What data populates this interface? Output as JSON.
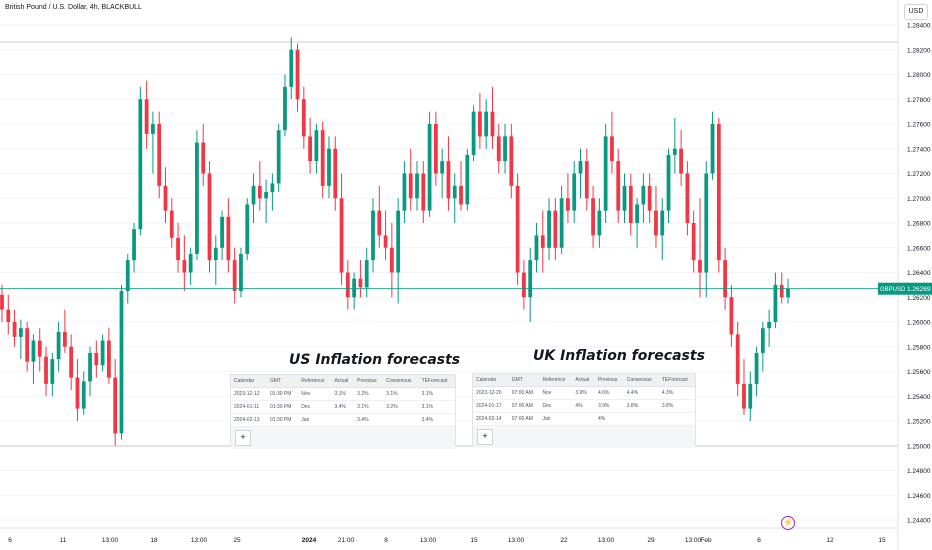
{
  "header": {
    "title": "British Pound / U.S. Dollar, 4h, BLACKBULL",
    "currency": "USD"
  },
  "price_tag": {
    "symbol": "GBPUSD",
    "value": "1.26269"
  },
  "us_panel": {
    "title": "US Inflation forecasts",
    "columns": [
      "Calendar",
      "GMT",
      "Reference",
      "Actual",
      "Previous",
      "Consensus",
      "TEForecast"
    ],
    "rows": [
      [
        "2023-12-12",
        "01:30 PM",
        "Nov",
        "3.1%",
        "3.2%",
        "3.1%",
        "3.1%"
      ],
      [
        "2024-01-11",
        "01:30 PM",
        "Dec",
        "3.4%",
        "3.1%",
        "3.2%",
        "3.1%"
      ],
      [
        "2024-02-13",
        "01:30 PM",
        "Jan",
        "",
        "3.4%",
        "",
        "3.4%"
      ]
    ],
    "add_label": "+"
  },
  "uk_panel": {
    "title": "UK Inflation forecasts",
    "columns": [
      "Calendar",
      "GMT",
      "Reference",
      "Actual",
      "Previous",
      "Consensus",
      "TEForecast"
    ],
    "rows": [
      [
        "2023-12-20",
        "07:00 AM",
        "Nov",
        "3.9%",
        "4.6%",
        "4.4%",
        "4.3%"
      ],
      [
        "2024-01-17",
        "07:00 AM",
        "Dec",
        "4%",
        "3.9%",
        "3.8%",
        "3.8%"
      ],
      [
        "2024-02-14",
        "07:00 AM",
        "Jan",
        "",
        "4%",
        "",
        ""
      ]
    ],
    "add_label": "+"
  },
  "flash_icon": "lightning-icon",
  "colors": {
    "up": "#089981",
    "down": "#f23645",
    "price_line": "#089981",
    "grid": "#f0f3fa"
  },
  "chart_data": {
    "type": "candlestick",
    "title": "British Pound / U.S. Dollar, 4h, BLACKBULL",
    "ylim": [
      1.2435,
      1.285
    ],
    "y_ticks": [
      "1.28400",
      "1.28200",
      "1.28000",
      "1.27800",
      "1.27600",
      "1.27400",
      "1.27200",
      "1.27000",
      "1.26800",
      "1.26600",
      "1.26400",
      "1.26200",
      "1.26000",
      "1.25800",
      "1.25600",
      "1.25400",
      "1.25200",
      "1.25000",
      "1.24800",
      "1.24600",
      "1.24400"
    ],
    "x_ticks": [
      "6",
      "11",
      "13:00",
      "18",
      "13:00",
      "25",
      "2024",
      "21:00",
      "8",
      "13:00",
      "15",
      "13:00",
      "22",
      "13:00",
      "29",
      "13:00",
      "Feb",
      "6",
      "12",
      "15"
    ],
    "last_price": 1.26269,
    "grid": true,
    "candles": [
      [
        1.2622,
        1.263,
        1.26,
        1.261
      ],
      [
        1.261,
        1.2622,
        1.259,
        1.26
      ],
      [
        1.26,
        1.261,
        1.258,
        1.2588
      ],
      [
        1.2588,
        1.2602,
        1.257,
        1.2595
      ],
      [
        1.2595,
        1.26,
        1.256,
        1.2568
      ],
      [
        1.2568,
        1.259,
        1.255,
        1.2585
      ],
      [
        1.2585,
        1.2595,
        1.256,
        1.2572
      ],
      [
        1.2572,
        1.258,
        1.254,
        1.255
      ],
      [
        1.255,
        1.2575,
        1.254,
        1.257
      ],
      [
        1.257,
        1.26,
        1.256,
        1.2592
      ],
      [
        1.2592,
        1.261,
        1.2575,
        1.258
      ],
      [
        1.258,
        1.259,
        1.2545,
        1.2555
      ],
      [
        1.2555,
        1.257,
        1.252,
        1.253
      ],
      [
        1.253,
        1.256,
        1.2525,
        1.2552
      ],
      [
        1.2552,
        1.258,
        1.254,
        1.2575
      ],
      [
        1.2575,
        1.2585,
        1.2555,
        1.2565
      ],
      [
        1.2565,
        1.259,
        1.256,
        1.2585
      ],
      [
        1.2585,
        1.2595,
        1.255,
        1.2555
      ],
      [
        1.2555,
        1.257,
        1.25,
        1.251
      ],
      [
        1.251,
        1.263,
        1.2505,
        1.2625
      ],
      [
        1.2625,
        1.2655,
        1.2615,
        1.265
      ],
      [
        1.265,
        1.268,
        1.264,
        1.2675
      ],
      [
        1.2675,
        1.279,
        1.267,
        1.278
      ],
      [
        1.278,
        1.2795,
        1.274,
        1.2752
      ],
      [
        1.2752,
        1.277,
        1.272,
        1.276
      ],
      [
        1.276,
        1.277,
        1.27,
        1.271
      ],
      [
        1.271,
        1.2725,
        1.268,
        1.269
      ],
      [
        1.269,
        1.27,
        1.266,
        1.2668
      ],
      [
        1.2668,
        1.268,
        1.264,
        1.265
      ],
      [
        1.265,
        1.267,
        1.2625,
        1.264
      ],
      [
        1.264,
        1.266,
        1.263,
        1.2655
      ],
      [
        1.2655,
        1.2755,
        1.265,
        1.2745
      ],
      [
        1.2745,
        1.276,
        1.271,
        1.272
      ],
      [
        1.272,
        1.273,
        1.264,
        1.265
      ],
      [
        1.265,
        1.267,
        1.263,
        1.266
      ],
      [
        1.266,
        1.269,
        1.265,
        1.2685
      ],
      [
        1.2685,
        1.27,
        1.264,
        1.265
      ],
      [
        1.265,
        1.266,
        1.2615,
        1.2625
      ],
      [
        1.2625,
        1.266,
        1.262,
        1.2655
      ],
      [
        1.2655,
        1.27,
        1.265,
        1.2695
      ],
      [
        1.2695,
        1.272,
        1.268,
        1.271
      ],
      [
        1.271,
        1.273,
        1.269,
        1.27
      ],
      [
        1.27,
        1.2715,
        1.268,
        1.2705
      ],
      [
        1.2705,
        1.272,
        1.269,
        1.2712
      ],
      [
        1.2712,
        1.276,
        1.2705,
        1.2755
      ],
      [
        1.2755,
        1.28,
        1.275,
        1.279
      ],
      [
        1.279,
        1.283,
        1.278,
        1.282
      ],
      [
        1.282,
        1.2825,
        1.277,
        1.278
      ],
      [
        1.278,
        1.279,
        1.274,
        1.275
      ],
      [
        1.275,
        1.2765,
        1.272,
        1.273
      ],
      [
        1.273,
        1.276,
        1.272,
        1.2755
      ],
      [
        1.2755,
        1.2762,
        1.27,
        1.271
      ],
      [
        1.271,
        1.275,
        1.27,
        1.274
      ],
      [
        1.274,
        1.275,
        1.269,
        1.27
      ],
      [
        1.27,
        1.272,
        1.263,
        1.264
      ],
      [
        1.264,
        1.265,
        1.261,
        1.262
      ],
      [
        1.262,
        1.264,
        1.261,
        1.2635
      ],
      [
        1.2635,
        1.265,
        1.262,
        1.2628
      ],
      [
        1.2628,
        1.266,
        1.262,
        1.265
      ],
      [
        1.265,
        1.27,
        1.264,
        1.269
      ],
      [
        1.269,
        1.271,
        1.266,
        1.267
      ],
      [
        1.267,
        1.269,
        1.265,
        1.266
      ],
      [
        1.266,
        1.268,
        1.262,
        1.264
      ],
      [
        1.264,
        1.27,
        1.2615,
        1.269
      ],
      [
        1.269,
        1.273,
        1.268,
        1.272
      ],
      [
        1.272,
        1.274,
        1.269,
        1.27
      ],
      [
        1.27,
        1.273,
        1.269,
        1.272
      ],
      [
        1.272,
        1.273,
        1.268,
        1.269
      ],
      [
        1.269,
        1.277,
        1.2685,
        1.276
      ],
      [
        1.276,
        1.277,
        1.271,
        1.272
      ],
      [
        1.272,
        1.274,
        1.27,
        1.273
      ],
      [
        1.273,
        1.275,
        1.269,
        1.27
      ],
      [
        1.27,
        1.272,
        1.268,
        1.271
      ],
      [
        1.271,
        1.273,
        1.269,
        1.2695
      ],
      [
        1.2695,
        1.274,
        1.269,
        1.2735
      ],
      [
        1.2735,
        1.2775,
        1.273,
        1.277
      ],
      [
        1.277,
        1.2785,
        1.274,
        1.275
      ],
      [
        1.275,
        1.278,
        1.274,
        1.277
      ],
      [
        1.277,
        1.279,
        1.274,
        1.275
      ],
      [
        1.275,
        1.276,
        1.272,
        1.273
      ],
      [
        1.273,
        1.276,
        1.272,
        1.275
      ],
      [
        1.275,
        1.276,
        1.27,
        1.271
      ],
      [
        1.271,
        1.272,
        1.263,
        1.264
      ],
      [
        1.264,
        1.265,
        1.261,
        1.262
      ],
      [
        1.262,
        1.266,
        1.26,
        1.265
      ],
      [
        1.265,
        1.268,
        1.264,
        1.267
      ],
      [
        1.267,
        1.269,
        1.264,
        1.266
      ],
      [
        1.266,
        1.27,
        1.265,
        1.269
      ],
      [
        1.269,
        1.27,
        1.265,
        1.266
      ],
      [
        1.266,
        1.271,
        1.2655,
        1.27
      ],
      [
        1.27,
        1.272,
        1.268,
        1.269
      ],
      [
        1.269,
        1.273,
        1.268,
        1.272
      ],
      [
        1.272,
        1.274,
        1.27,
        1.273
      ],
      [
        1.273,
        1.274,
        1.269,
        1.27
      ],
      [
        1.27,
        1.271,
        1.266,
        1.267
      ],
      [
        1.267,
        1.27,
        1.266,
        1.269
      ],
      [
        1.269,
        1.276,
        1.268,
        1.275
      ],
      [
        1.275,
        1.277,
        1.272,
        1.273
      ],
      [
        1.273,
        1.274,
        1.268,
        1.269
      ],
      [
        1.269,
        1.272,
        1.268,
        1.271
      ],
      [
        1.271,
        1.272,
        1.267,
        1.268
      ],
      [
        1.268,
        1.27,
        1.266,
        1.2695
      ],
      [
        1.2695,
        1.272,
        1.268,
        1.271
      ],
      [
        1.271,
        1.272,
        1.268,
        1.269
      ],
      [
        1.269,
        1.271,
        1.266,
        1.267
      ],
      [
        1.267,
        1.27,
        1.265,
        1.269
      ],
      [
        1.269,
        1.274,
        1.268,
        1.2735
      ],
      [
        1.2735,
        1.2765,
        1.272,
        1.274
      ],
      [
        1.274,
        1.2755,
        1.271,
        1.272
      ],
      [
        1.272,
        1.273,
        1.267,
        1.268
      ],
      [
        1.268,
        1.269,
        1.264,
        1.265
      ],
      [
        1.265,
        1.27,
        1.262,
        1.264
      ],
      [
        1.264,
        1.273,
        1.262,
        1.272
      ],
      [
        1.272,
        1.277,
        1.2715,
        1.276
      ],
      [
        1.276,
        1.2765,
        1.264,
        1.265
      ],
      [
        1.265,
        1.266,
        1.261,
        1.262
      ],
      [
        1.262,
        1.263,
        1.258,
        1.259
      ],
      [
        1.259,
        1.26,
        1.254,
        1.255
      ],
      [
        1.255,
        1.257,
        1.2525,
        1.253
      ],
      [
        1.253,
        1.256,
        1.252,
        1.255
      ],
      [
        1.255,
        1.258,
        1.254,
        1.2575
      ],
      [
        1.2575,
        1.26,
        1.256,
        1.2595
      ],
      [
        1.2595,
        1.261,
        1.258,
        1.26
      ],
      [
        1.26,
        1.264,
        1.2595,
        1.263
      ],
      [
        1.263,
        1.264,
        1.2615,
        1.262
      ],
      [
        1.262,
        1.2635,
        1.2615,
        1.2627
      ]
    ]
  }
}
